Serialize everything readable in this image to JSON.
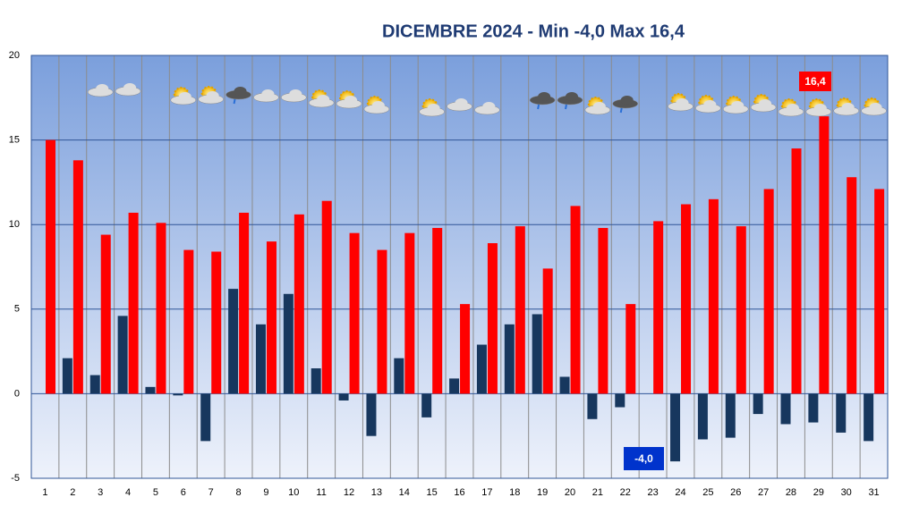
{
  "chart_data": {
    "type": "bar",
    "title": "DICEMBRE 2024 - Min -4,0 Max 16,4",
    "categories": [
      "1",
      "2",
      "3",
      "4",
      "5",
      "6",
      "7",
      "8",
      "9",
      "10",
      "11",
      "12",
      "13",
      "14",
      "15",
      "16",
      "17",
      "18",
      "19",
      "20",
      "21",
      "22",
      "23",
      "24",
      "25",
      "26",
      "27",
      "28",
      "29",
      "30",
      "31"
    ],
    "series": [
      {
        "name": "Min",
        "color": "#17375e",
        "values": [
          null,
          2.1,
          1.1,
          4.6,
          0.4,
          -0.1,
          -2.8,
          6.2,
          4.1,
          5.9,
          1.5,
          -0.4,
          -2.5,
          2.1,
          -1.4,
          0.9,
          2.9,
          4.1,
          4.7,
          1.0,
          -1.5,
          -0.8,
          null,
          -4.0,
          -2.7,
          -2.6,
          -1.2,
          -1.8,
          -1.7,
          -2.3,
          -2.8
        ],
        "value_labels": [
          null,
          null,
          null,
          null,
          null,
          null,
          null,
          null,
          null,
          null,
          null,
          null,
          null,
          null,
          null,
          null,
          null,
          null,
          null,
          null,
          null,
          null,
          null,
          "-4,0",
          null,
          null,
          null,
          null,
          null,
          null,
          null
        ]
      },
      {
        "name": "Max",
        "color": "#ff0000",
        "values": [
          15.0,
          13.8,
          9.4,
          10.7,
          10.1,
          8.5,
          8.4,
          10.7,
          9.0,
          10.6,
          11.4,
          9.5,
          8.5,
          9.5,
          9.8,
          5.3,
          8.9,
          9.9,
          7.4,
          11.1,
          9.8,
          5.3,
          10.2,
          11.2,
          11.5,
          9.9,
          12.1,
          14.5,
          16.4,
          12.8,
          12.1
        ],
        "value_labels": [
          null,
          null,
          null,
          null,
          null,
          null,
          null,
          null,
          null,
          null,
          null,
          null,
          null,
          null,
          null,
          null,
          null,
          null,
          null,
          null,
          null,
          null,
          null,
          null,
          null,
          null,
          null,
          null,
          "16,4",
          null,
          null
        ]
      }
    ],
    "ylim": [
      -5,
      20
    ],
    "yticks": [
      -5,
      0,
      5,
      10,
      15,
      20
    ],
    "grid": true
  }
}
